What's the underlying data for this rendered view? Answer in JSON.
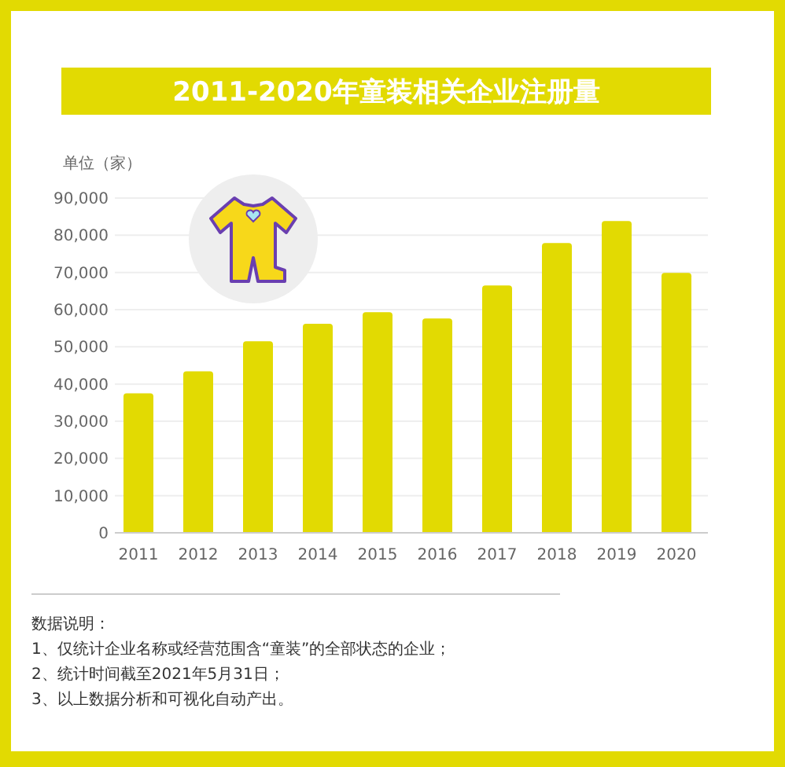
{
  "chart_data": {
    "type": "bar",
    "title": "2011-2020年童装相关企业注册量",
    "ylabel": "单位（家）",
    "categories": [
      "2011",
      "2012",
      "2013",
      "2014",
      "2015",
      "2016",
      "2017",
      "2018",
      "2019",
      "2020"
    ],
    "values": [
      37500,
      43400,
      51500,
      56200,
      59300,
      57600,
      66500,
      77900,
      83800,
      69900
    ],
    "color": "#e2da02",
    "ylim": [
      0,
      90000
    ],
    "yticks": [
      0,
      {
        "value": 10000,
        "label": "10,000"
      },
      {
        "value": 20000,
        "label": "20,000"
      },
      {
        "value": 30000,
        "label": "30,000"
      },
      {
        "value": 40000,
        "label": "40,000"
      },
      {
        "value": 50000,
        "label": "50,000"
      },
      {
        "value": 60000,
        "label": "60,000"
      },
      {
        "value": 70000,
        "label": "70,000"
      },
      {
        "value": 80000,
        "label": "80,000"
      },
      {
        "value": 90000,
        "label": "90,000"
      }
    ],
    "grid": "y",
    "annotations": [
      "数据说明：",
      "1、仅统计企业名称或经营范围含“童装”的全部状态的企业；",
      "2、统计时间截至2021年5月31日；",
      "3、以上数据分析和可视化自动产出。"
    ]
  }
}
